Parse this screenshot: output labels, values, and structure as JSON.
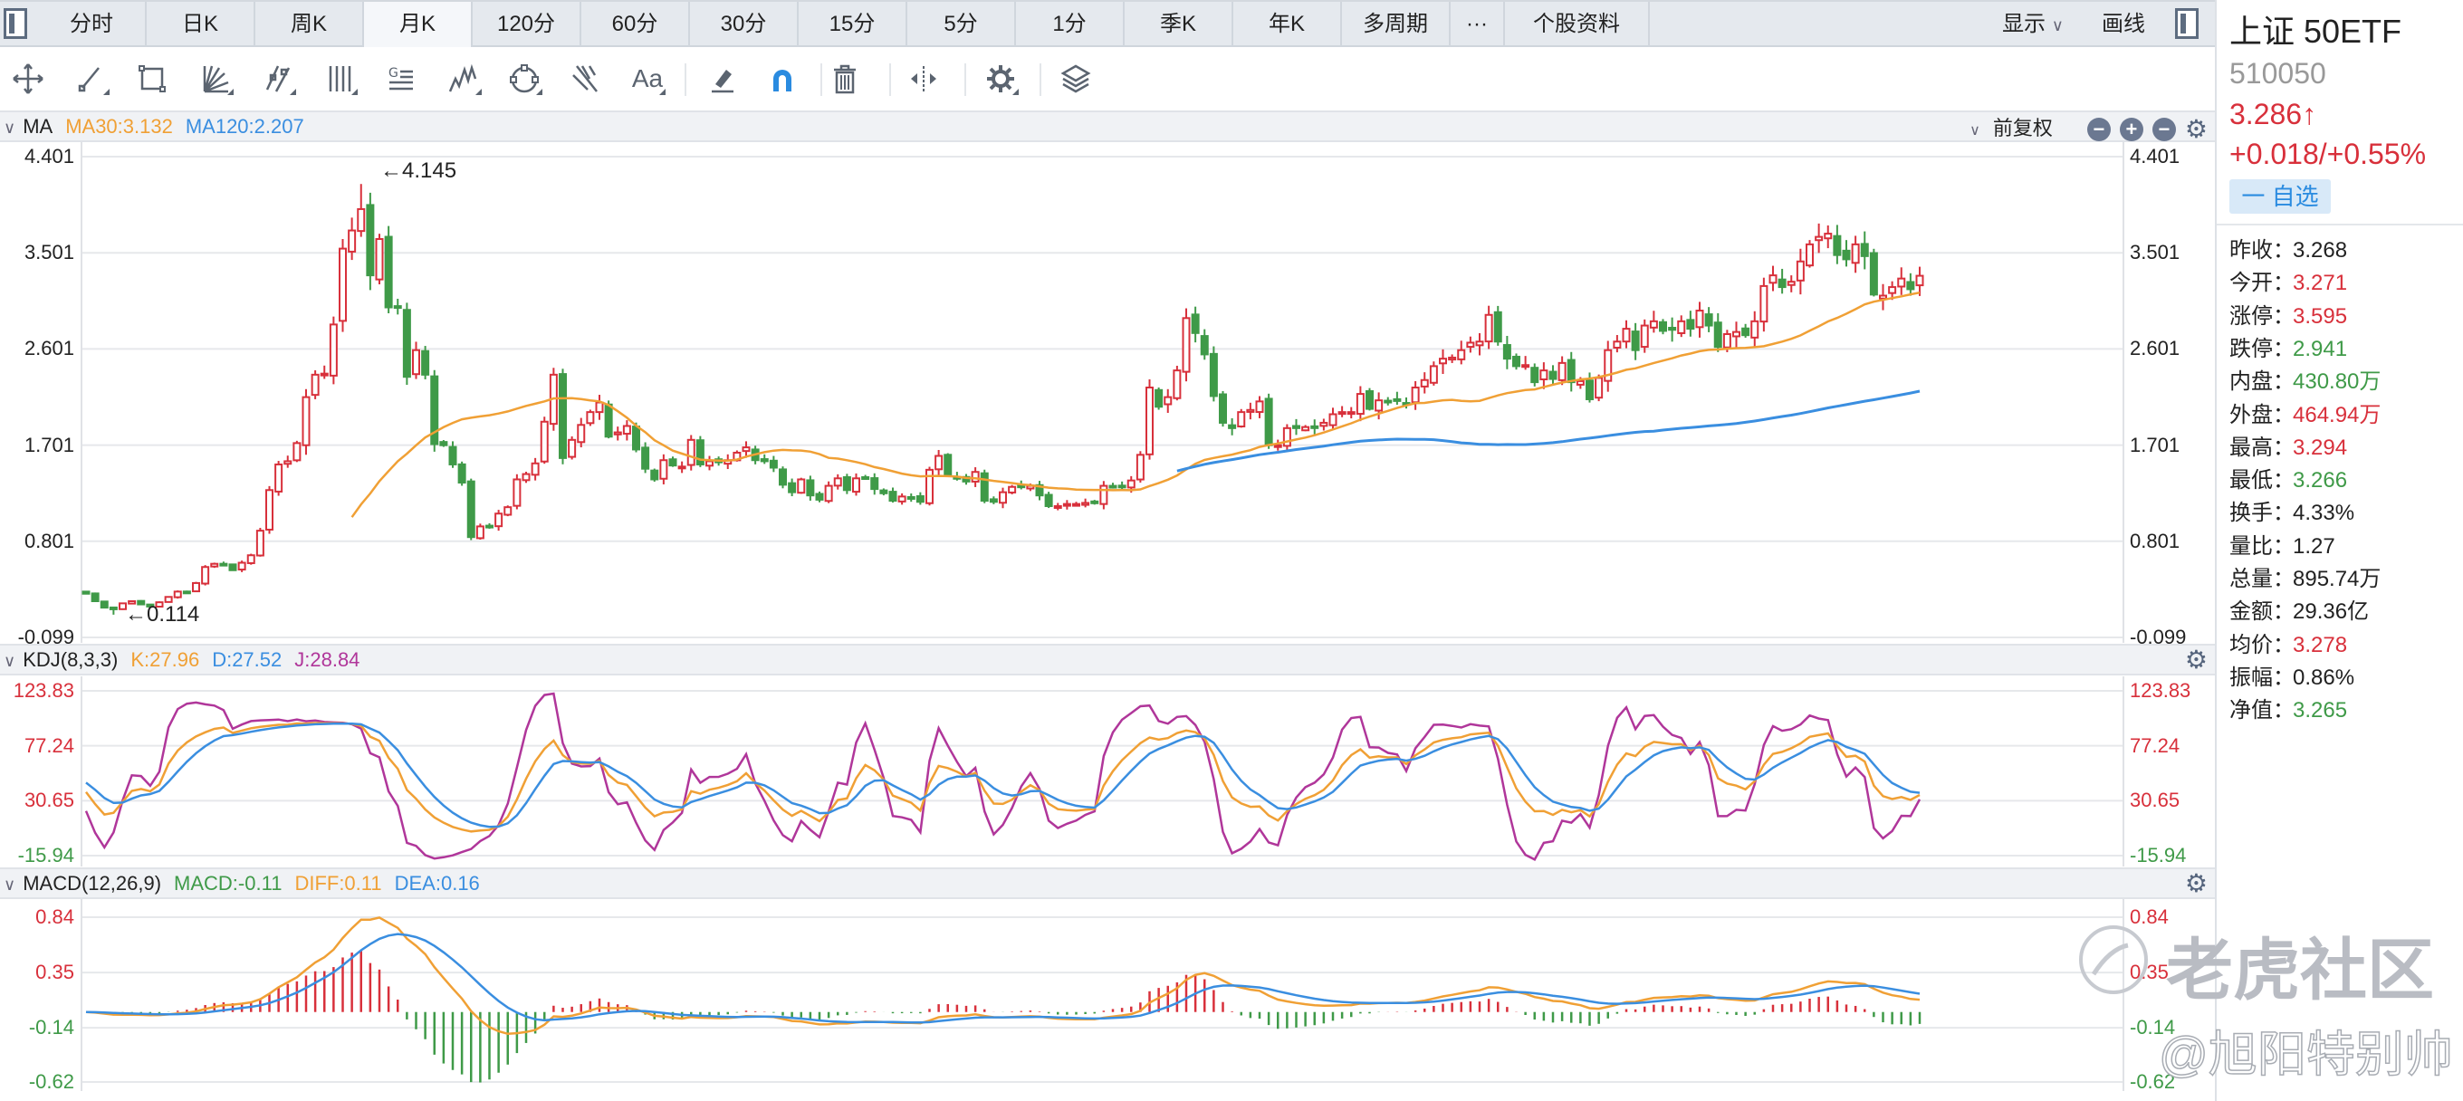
{
  "tabs": {
    "items": [
      "分时",
      "日K",
      "周K",
      "月K",
      "120分",
      "60分",
      "30分",
      "15分",
      "5分",
      "1分",
      "季K",
      "年K",
      "多周期",
      "···",
      "个股资料"
    ],
    "active_index": 3
  },
  "right_controls": {
    "display": "显示",
    "display_chevron": "∨",
    "draw": "画线"
  },
  "toolbar": {
    "icons": [
      "crosshair-move-icon",
      "line-segment-icon",
      "rectangle-icon",
      "fan-lines-icon",
      "parallel-channel-icon",
      "vertical-lines-icon",
      "gann-icon",
      "zigzag-icon",
      "circle-icon",
      "pitchfork-icon",
      "text-icon",
      "eraser-icon",
      "magnet-icon",
      "trash-icon",
      "compress-icon",
      "settings-icon",
      "layers-icon"
    ],
    "text_icon_label": "Aa",
    "gann_label": "G"
  },
  "ma_header": {
    "label": "MA",
    "ma30": "MA30:3.132",
    "ma120": "MA120:2.207",
    "adjust": "前复权",
    "chevron": "∨"
  },
  "kdj_header": {
    "label": "KDJ(8,3,3)",
    "k": "K:27.96",
    "d": "D:27.52",
    "j": "J:28.84"
  },
  "macd_header": {
    "label": "MACD(12,26,9)",
    "macd": "MACD:-0.11",
    "diff": "DIFF:0.11",
    "dea": "DEA:0.16"
  },
  "axes": {
    "main": [
      "4.401",
      "3.501",
      "2.601",
      "1.701",
      "0.801",
      "-0.099"
    ],
    "kdj": [
      "123.83",
      "77.24",
      "30.65",
      "-15.94"
    ],
    "macd": [
      "0.84",
      "0.35",
      "-0.14",
      "-0.62"
    ]
  },
  "annotations": {
    "high": "←4.145",
    "low": "←0.114"
  },
  "quote": {
    "name": "上证 50ETF",
    "code": "510050",
    "price": "3.286↑",
    "change": "+0.018/+0.55%",
    "watchlist": "自选",
    "watchlist_icon": "一"
  },
  "stats": [
    {
      "label": "昨收：",
      "value": "3.268",
      "color": "flat"
    },
    {
      "label": "今开：",
      "value": "3.271",
      "color": "up"
    },
    {
      "label": "涨停：",
      "value": "3.595",
      "color": "up"
    },
    {
      "label": "跌停：",
      "value": "2.941",
      "color": "down"
    },
    {
      "label": "内盘：",
      "value": "430.80万",
      "color": "down"
    },
    {
      "label": "外盘：",
      "value": "464.94万",
      "color": "up"
    },
    {
      "label": "最高：",
      "value": "3.294",
      "color": "up"
    },
    {
      "label": "最低：",
      "value": "3.266",
      "color": "down"
    },
    {
      "label": "换手：",
      "value": "4.33%",
      "color": "flat"
    },
    {
      "label": "量比：",
      "value": "1.27",
      "color": "flat"
    },
    {
      "label": "总量：",
      "value": "895.74万",
      "color": "flat"
    },
    {
      "label": "金额：",
      "value": "29.36亿",
      "color": "flat"
    },
    {
      "label": "均价：",
      "value": "3.278",
      "color": "up"
    },
    {
      "label": "振幅：",
      "value": "0.86%",
      "color": "flat"
    },
    {
      "label": "净值：",
      "value": "3.265",
      "color": "down"
    }
  ],
  "colors": {
    "up": "#d8303b",
    "down": "#3f9a48",
    "ma30": "#f0a035",
    "ma120": "#3a8ee0",
    "k": "#f0a035",
    "d": "#3a8ee0",
    "j": "#b0369a",
    "macd_label": "#3f9a48",
    "accent": "#2a8be0"
  },
  "watermark": {
    "brand": "老虎社区",
    "user": "@旭阳特别帅"
  },
  "chart_data": {
    "type": "candlestick",
    "period": "月K",
    "adjustment": "前复权",
    "price_axis": [
      -0.099,
      4.401
    ],
    "kdj_axis": [
      -15.94,
      123.83
    ],
    "macd_axis": [
      -0.62,
      0.84
    ],
    "high_value": 4.145,
    "low_value": 0.114,
    "close": [
      0.31,
      0.24,
      0.18,
      0.165,
      0.22,
      0.24,
      0.21,
      0.19,
      0.23,
      0.28,
      0.33,
      0.33,
      0.41,
      0.56,
      0.59,
      0.59,
      0.53,
      0.6,
      0.67,
      0.9,
      1.28,
      1.52,
      1.55,
      1.72,
      2.15,
      2.36,
      2.37,
      2.83,
      3.54,
      3.71,
      3.91,
      3.29,
      3.63,
      2.99,
      3.0,
      2.34,
      2.59,
      2.36,
      1.71,
      1.7,
      1.52,
      1.35,
      0.84,
      0.94,
      0.94,
      1.06,
      1.12,
      1.38,
      1.43,
      1.53,
      1.92,
      2.36,
      1.58,
      1.75,
      1.89,
      2.01,
      2.1,
      1.78,
      1.82,
      1.88,
      1.66,
      1.48,
      1.38,
      1.56,
      1.51,
      1.5,
      1.75,
      1.52,
      1.55,
      1.54,
      1.56,
      1.63,
      1.68,
      1.56,
      1.55,
      1.49,
      1.33,
      1.26,
      1.38,
      1.23,
      1.19,
      1.32,
      1.39,
      1.28,
      1.39,
      1.39,
      1.29,
      1.25,
      1.18,
      1.22,
      1.21,
      1.17,
      1.47,
      1.6,
      1.42,
      1.39,
      1.36,
      1.45,
      1.18,
      1.17,
      1.26,
      1.31,
      1.31,
      1.32,
      1.23,
      1.13,
      1.13,
      1.15,
      1.15,
      1.16,
      1.16,
      1.32,
      1.31,
      1.32,
      1.37,
      1.61,
      2.24,
      2.06,
      2.15,
      2.4,
      2.89,
      2.75,
      2.55,
      2.16,
      1.91,
      1.86,
      2.01,
      2.03,
      2.11,
      1.7,
      1.7,
      1.86,
      1.86,
      1.87,
      1.87,
      1.91,
      1.99,
      2.01,
      2.01,
      2.18,
      2.04,
      2.12,
      2.11,
      2.12,
      2.09,
      2.24,
      2.31,
      2.44,
      2.51,
      2.52,
      2.59,
      2.66,
      2.67,
      2.92,
      2.67,
      2.51,
      2.44,
      2.45,
      2.29,
      2.4,
      2.32,
      2.47,
      2.29,
      2.3,
      2.13,
      2.33,
      2.59,
      2.67,
      2.79,
      2.59,
      2.82,
      2.86,
      2.77,
      2.78,
      2.86,
      2.79,
      2.96,
      2.82,
      2.62,
      2.74,
      2.76,
      2.73,
      2.86,
      3.19,
      3.29,
      3.18,
      3.23,
      3.42,
      3.58,
      3.65,
      3.68,
      3.48,
      3.44,
      3.58,
      3.47,
      3.11,
      3.1,
      3.18,
      3.26,
      3.16,
      3.286
    ],
    "indicators": [
      "MA30",
      "MA120",
      "KDJ(8,3,3)",
      "MACD(12,26,9)"
    ]
  }
}
